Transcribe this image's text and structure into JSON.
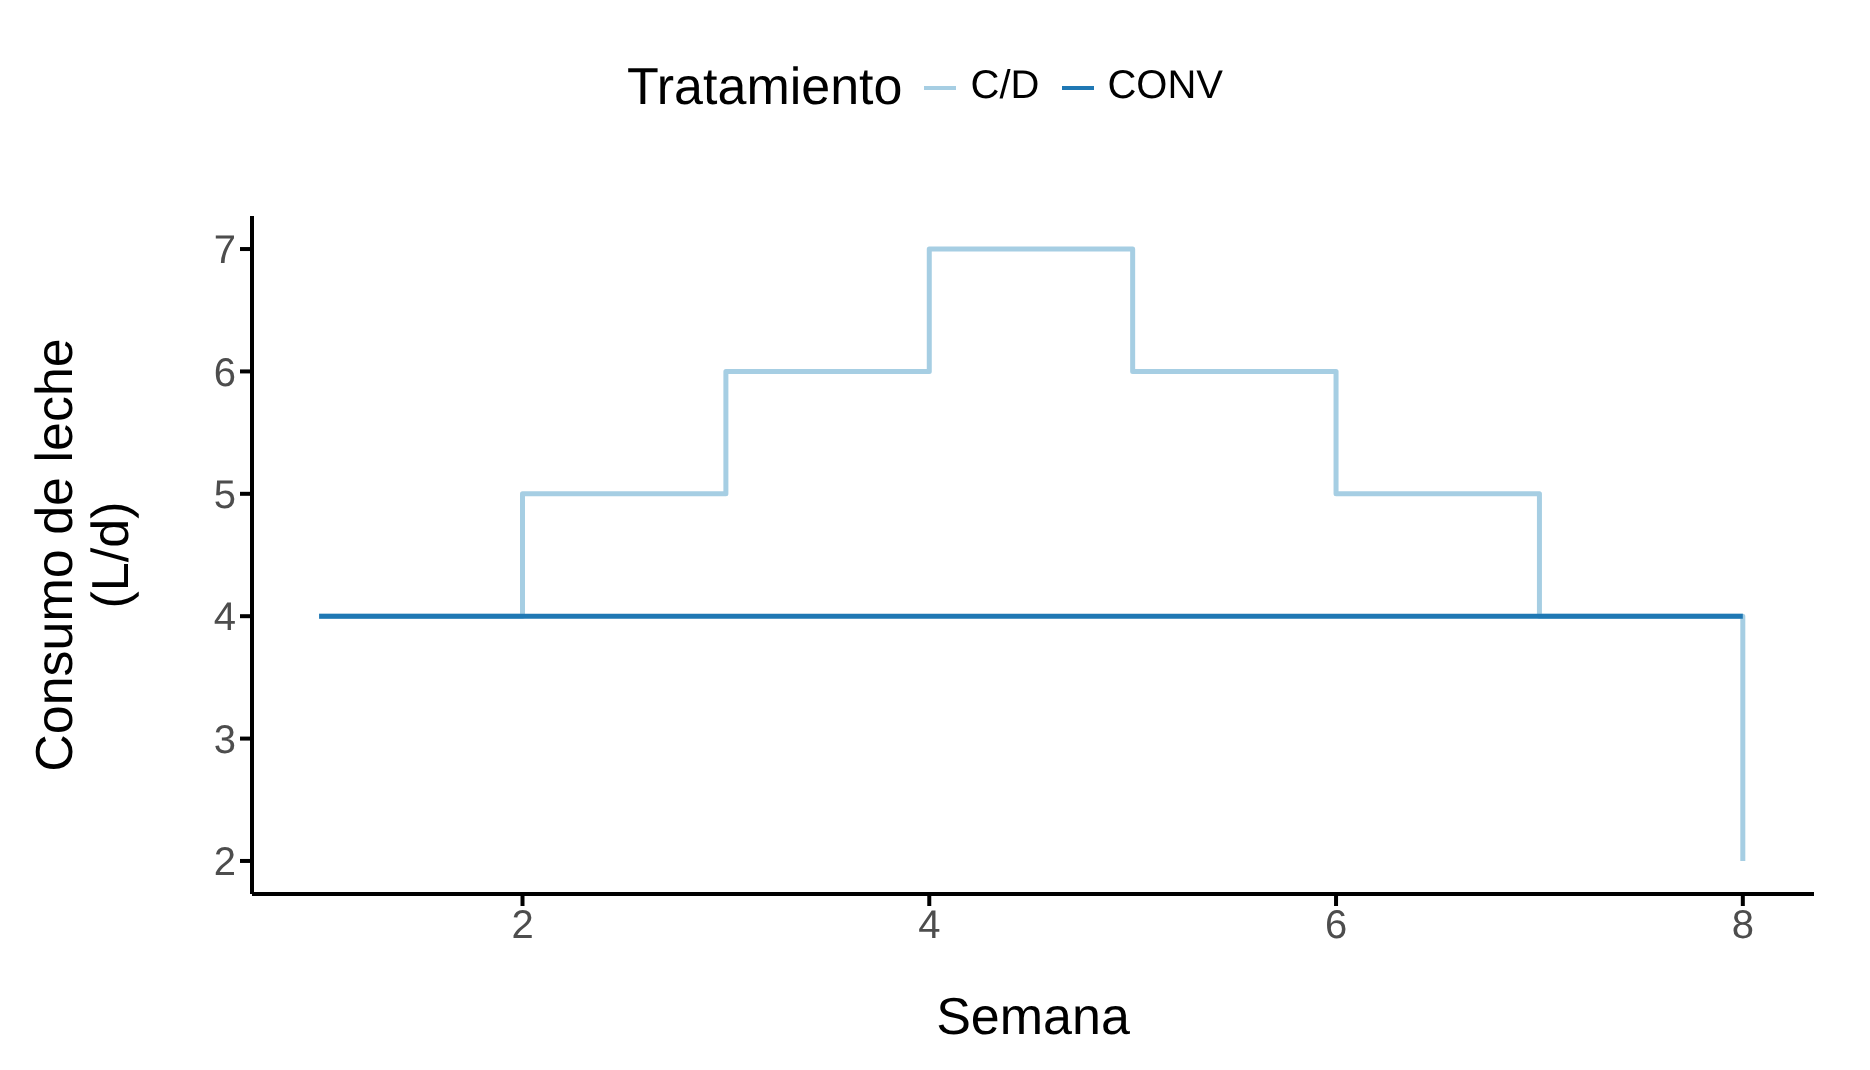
{
  "chart_data": {
    "type": "step",
    "xlabel": "Semana",
    "ylabel": "Consumo de leche\n(L/d)",
    "legend_title": "Tratamiento",
    "legend": "top",
    "grid": false,
    "marker": "none",
    "line_style": "solid",
    "x": [
      1,
      2,
      3,
      4,
      5,
      6,
      7,
      8
    ],
    "series": [
      {
        "name": "C/D",
        "color": "#a6cee3",
        "values": [
          4,
          5,
          6,
          7,
          6,
          5,
          4,
          2
        ]
      },
      {
        "name": "CONV",
        "color": "#1f78b4",
        "values": [
          4,
          4,
          4,
          4,
          4,
          4,
          4,
          4
        ]
      }
    ],
    "xlim": [
      0.67,
      8.35
    ],
    "xticks": [
      2,
      4,
      6,
      8
    ],
    "ylim": [
      1.73,
      7.27
    ],
    "yticks": [
      2,
      3,
      4,
      5,
      6,
      7
    ]
  }
}
